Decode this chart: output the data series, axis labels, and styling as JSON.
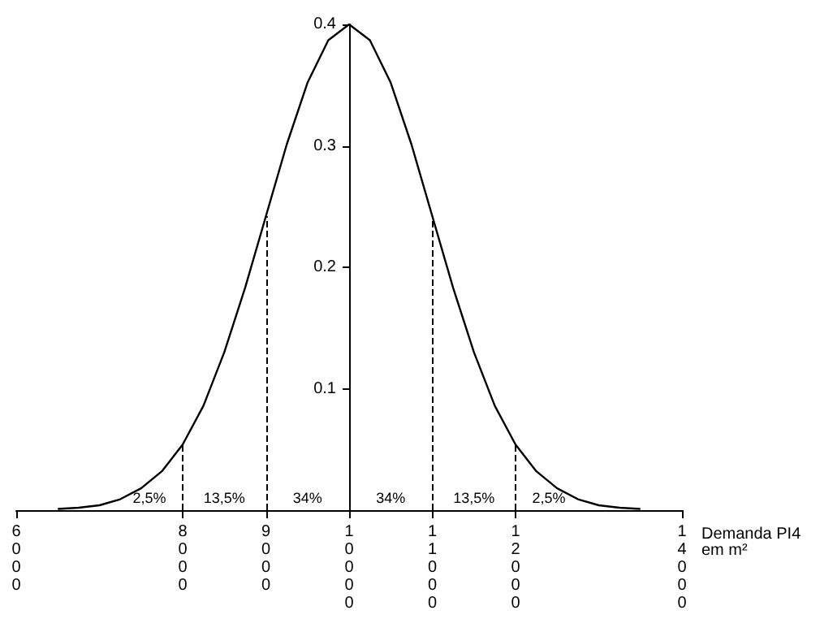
{
  "chart_data": {
    "type": "line",
    "xlabel": "Demanda PI4 em m²",
    "x": [
      6500,
      6750,
      7000,
      7250,
      7500,
      7750,
      8000,
      8250,
      8500,
      8750,
      9000,
      9250,
      9500,
      9750,
      10000,
      10250,
      10500,
      10750,
      11000,
      11250,
      11500,
      11750,
      12000,
      12250,
      12500,
      12750,
      13000,
      13250,
      13500
    ],
    "series": [
      {
        "color": "#000000",
        "values": [
          0.001,
          0.002,
          0.004,
          0.009,
          0.018,
          0.032,
          0.054,
          0.086,
          0.13,
          0.183,
          0.242,
          0.301,
          0.352,
          0.387,
          0.4,
          0.387,
          0.352,
          0.301,
          0.242,
          0.183,
          0.13,
          0.086,
          0.054,
          0.032,
          0.018,
          0.009,
          0.004,
          0.002,
          0.001
        ]
      }
    ],
    "xlim": [
      6000,
      14000
    ],
    "xticks": [
      6000,
      8000,
      9000,
      10000,
      11000,
      12000,
      14000
    ],
    "ylim": [
      0,
      0.4
    ],
    "yticks": [
      0.1,
      0.2,
      0.3,
      0.4
    ],
    "ref_lines": [
      {
        "axis": "x",
        "value": 8000,
        "line_style": "dashed"
      },
      {
        "axis": "x",
        "value": 9000,
        "line_style": "dashed"
      },
      {
        "axis": "x",
        "value": 11000,
        "line_style": "dashed"
      },
      {
        "axis": "x",
        "value": 12000,
        "line_style": "dashed"
      }
    ],
    "annotations": [
      "2,5%",
      "13,5%",
      "34%",
      "34%",
      "13,5%",
      "2,5%"
    ],
    "marker": "none",
    "line_style": "solid",
    "grid": false
  }
}
